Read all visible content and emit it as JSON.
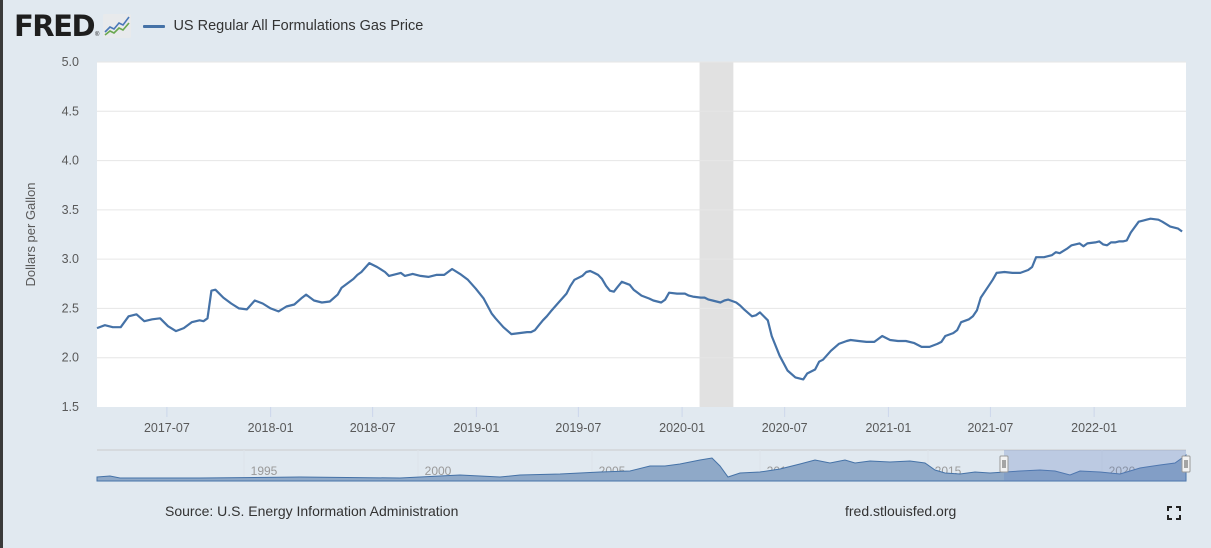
{
  "header": {
    "logo_text": "FRED",
    "logo_reg": "®",
    "logo_icon": "line-chart-icon",
    "legend_label": "US Regular All Formulations Gas Price",
    "series_color": "#4572a7"
  },
  "footer": {
    "source": "Source: U.S. Energy Information Administration",
    "url": "fred.stlouisfed.org",
    "fullscreen_icon": "fullscreen-icon"
  },
  "navigator": {
    "year_labels": [
      "1995",
      "2000",
      "2005",
      "2010",
      "2015",
      "2020"
    ],
    "selected_range": [
      "2017-02",
      "2022-06"
    ]
  },
  "chart_data": {
    "type": "line",
    "title": "US Regular All Formulations Gas Price",
    "xlabel": "",
    "ylabel": "Dollars per Gallon",
    "ylim": [
      1.5,
      5.0
    ],
    "xlim": [
      "2017-02-27",
      "2022-06-13"
    ],
    "yticks": [
      "1.5",
      "2.0",
      "2.5",
      "3.0",
      "3.5",
      "4.0",
      "4.5",
      "5.0"
    ],
    "xticks": [
      {
        "date": "2017-07-01",
        "label": "2017-07"
      },
      {
        "date": "2018-01-01",
        "label": "2018-01"
      },
      {
        "date": "2018-07-01",
        "label": "2018-07"
      },
      {
        "date": "2019-01-01",
        "label": "2019-01"
      },
      {
        "date": "2019-07-01",
        "label": "2019-07"
      },
      {
        "date": "2020-01-01",
        "label": "2020-01"
      },
      {
        "date": "2020-07-01",
        "label": "2020-07"
      },
      {
        "date": "2021-01-01",
        "label": "2021-01"
      },
      {
        "date": "2021-07-01",
        "label": "2021-07"
      },
      {
        "date": "2022-01-01",
        "label": "2022-01"
      }
    ],
    "grid": true,
    "legend": "top-left",
    "recession_shading": [
      [
        "2020-02-01",
        "2020-04-01"
      ]
    ],
    "series": [
      {
        "name": "US Regular All Formulations Gas Price",
        "color": "#4572a7",
        "points": [
          [
            "2017-02-27",
            2.3
          ],
          [
            "2017-03-13",
            2.33
          ],
          [
            "2017-03-27",
            2.31
          ],
          [
            "2017-04-10",
            2.31
          ],
          [
            "2017-04-24",
            2.42
          ],
          [
            "2017-05-08",
            2.44
          ],
          [
            "2017-05-22",
            2.37
          ],
          [
            "2017-06-05",
            2.39
          ],
          [
            "2017-06-19",
            2.4
          ],
          [
            "2017-07-03",
            2.32
          ],
          [
            "2017-07-17",
            2.27
          ],
          [
            "2017-07-31",
            2.3
          ],
          [
            "2017-08-14",
            2.36
          ],
          [
            "2017-08-28",
            2.38
          ],
          [
            "2017-09-04",
            2.37
          ],
          [
            "2017-09-11",
            2.4
          ],
          [
            "2017-09-18",
            2.68
          ],
          [
            "2017-09-25",
            2.69
          ],
          [
            "2017-10-09",
            2.61
          ],
          [
            "2017-10-23",
            2.55
          ],
          [
            "2017-11-06",
            2.5
          ],
          [
            "2017-11-20",
            2.49
          ],
          [
            "2017-12-04",
            2.58
          ],
          [
            "2017-12-18",
            2.55
          ],
          [
            "2018-01-01",
            2.5
          ],
          [
            "2018-01-15",
            2.47
          ],
          [
            "2018-01-29",
            2.52
          ],
          [
            "2018-02-12",
            2.54
          ],
          [
            "2018-02-26",
            2.61
          ],
          [
            "2018-03-05",
            2.64
          ],
          [
            "2018-03-19",
            2.58
          ],
          [
            "2018-04-02",
            2.56
          ],
          [
            "2018-04-16",
            2.57
          ],
          [
            "2018-04-30",
            2.64
          ],
          [
            "2018-05-07",
            2.71
          ],
          [
            "2018-05-28",
            2.8
          ],
          [
            "2018-06-04",
            2.84
          ],
          [
            "2018-06-11",
            2.87
          ],
          [
            "2018-06-25",
            2.96
          ],
          [
            "2018-07-09",
            2.92
          ],
          [
            "2018-07-23",
            2.87
          ],
          [
            "2018-07-30",
            2.83
          ],
          [
            "2018-08-13",
            2.85
          ],
          [
            "2018-08-20",
            2.86
          ],
          [
            "2018-08-27",
            2.83
          ],
          [
            "2018-09-10",
            2.85
          ],
          [
            "2018-09-24",
            2.83
          ],
          [
            "2018-10-08",
            2.82
          ],
          [
            "2018-10-22",
            2.84
          ],
          [
            "2018-11-05",
            2.84
          ],
          [
            "2018-11-19",
            2.9
          ],
          [
            "2018-12-03",
            2.85
          ],
          [
            "2018-12-17",
            2.79
          ],
          [
            "2018-12-31",
            2.7
          ],
          [
            "2019-01-14",
            2.6
          ],
          [
            "2019-01-28",
            2.45
          ],
          [
            "2019-02-04",
            2.4
          ],
          [
            "2019-02-18",
            2.31
          ],
          [
            "2019-03-04",
            2.24
          ],
          [
            "2019-03-18",
            2.25
          ],
          [
            "2019-04-01",
            2.26
          ],
          [
            "2019-04-08",
            2.26
          ],
          [
            "2019-04-15",
            2.28
          ],
          [
            "2019-04-22",
            2.33
          ],
          [
            "2019-04-29",
            2.38
          ],
          [
            "2019-05-06",
            2.42
          ],
          [
            "2019-05-13",
            2.47
          ],
          [
            "2019-05-27",
            2.56
          ],
          [
            "2019-06-10",
            2.65
          ],
          [
            "2019-06-17",
            2.73
          ],
          [
            "2019-06-24",
            2.79
          ],
          [
            "2019-07-08",
            2.83
          ],
          [
            "2019-07-15",
            2.87
          ],
          [
            "2019-07-22",
            2.88
          ],
          [
            "2019-07-29",
            2.86
          ],
          [
            "2019-08-05",
            2.84
          ],
          [
            "2019-08-12",
            2.8
          ],
          [
            "2019-08-19",
            2.73
          ],
          [
            "2019-08-26",
            2.68
          ],
          [
            "2019-09-02",
            2.67
          ],
          [
            "2019-09-09",
            2.72
          ],
          [
            "2019-09-16",
            2.77
          ],
          [
            "2019-09-30",
            2.74
          ],
          [
            "2019-10-07",
            2.69
          ],
          [
            "2019-10-21",
            2.63
          ],
          [
            "2019-11-04",
            2.6
          ],
          [
            "2019-11-11",
            2.58
          ],
          [
            "2019-11-25",
            2.56
          ],
          [
            "2019-12-02",
            2.59
          ],
          [
            "2019-12-09",
            2.66
          ],
          [
            "2019-12-23",
            2.65
          ],
          [
            "2020-01-06",
            2.65
          ],
          [
            "2020-01-13",
            2.63
          ],
          [
            "2020-01-20",
            2.62
          ],
          [
            "2020-02-03",
            2.61
          ],
          [
            "2020-02-10",
            2.61
          ],
          [
            "2020-02-17",
            2.59
          ],
          [
            "2020-02-24",
            2.58
          ],
          [
            "2020-03-09",
            2.56
          ],
          [
            "2020-03-16",
            2.58
          ],
          [
            "2020-03-23",
            2.59
          ],
          [
            "2020-04-06",
            2.56
          ],
          [
            "2020-04-13",
            2.53
          ],
          [
            "2020-04-20",
            2.49
          ],
          [
            "2020-05-04",
            2.42
          ],
          [
            "2020-05-11",
            2.43
          ],
          [
            "2020-05-18",
            2.46
          ],
          [
            "2020-06-01",
            2.38
          ],
          [
            "2020-06-08",
            2.22
          ],
          [
            "2020-06-22",
            2.02
          ],
          [
            "2020-07-06",
            1.87
          ],
          [
            "2020-07-20",
            1.8
          ],
          [
            "2020-08-03",
            1.78
          ],
          [
            "2020-08-10",
            1.84
          ],
          [
            "2020-08-24",
            1.88
          ],
          [
            "2020-08-31",
            1.96
          ],
          [
            "2020-09-07",
            1.98
          ],
          [
            "2020-09-21",
            2.07
          ],
          [
            "2020-10-05",
            2.14
          ],
          [
            "2020-10-19",
            2.17
          ],
          [
            "2020-10-26",
            2.18
          ],
          [
            "2020-11-09",
            2.17
          ],
          [
            "2020-11-23",
            2.16
          ],
          [
            "2020-12-07",
            2.16
          ],
          [
            "2020-12-14",
            2.19
          ],
          [
            "2020-12-21",
            2.22
          ],
          [
            "2021-01-04",
            2.18
          ],
          [
            "2021-01-18",
            2.17
          ],
          [
            "2021-02-01",
            2.17
          ],
          [
            "2021-02-15",
            2.15
          ],
          [
            "2021-02-22",
            2.13
          ],
          [
            "2021-03-01",
            2.11
          ],
          [
            "2021-03-15",
            2.11
          ],
          [
            "2021-03-29",
            2.14
          ],
          [
            "2021-04-05",
            2.16
          ],
          [
            "2021-04-12",
            2.22
          ],
          [
            "2021-04-26",
            2.25
          ],
          [
            "2021-05-03",
            2.28
          ],
          [
            "2021-05-10",
            2.36
          ],
          [
            "2021-05-24",
            2.39
          ],
          [
            "2021-05-31",
            2.42
          ],
          [
            "2021-06-07",
            2.48
          ],
          [
            "2021-06-14",
            2.61
          ],
          [
            "2021-06-28",
            2.73
          ],
          [
            "2021-07-05",
            2.79
          ],
          [
            "2021-07-12",
            2.86
          ],
          [
            "2021-07-26",
            2.87
          ],
          [
            "2021-08-09",
            2.86
          ],
          [
            "2021-08-23",
            2.86
          ],
          [
            "2021-09-06",
            2.89
          ],
          [
            "2021-09-13",
            2.92
          ],
          [
            "2021-09-20",
            3.02
          ],
          [
            "2021-10-04",
            3.02
          ],
          [
            "2021-10-18",
            3.04
          ],
          [
            "2021-10-25",
            3.07
          ],
          [
            "2021-11-01",
            3.06
          ],
          [
            "2021-11-15",
            3.11
          ],
          [
            "2021-11-22",
            3.14
          ],
          [
            "2021-12-06",
            3.16
          ],
          [
            "2021-12-13",
            3.13
          ],
          [
            "2021-12-20",
            3.16
          ],
          [
            "2022-01-03",
            3.17
          ],
          [
            "2022-01-10",
            3.18
          ],
          [
            "2022-01-17",
            3.15
          ],
          [
            "2022-01-24",
            3.14
          ],
          [
            "2022-01-31",
            3.17
          ],
          [
            "2022-02-07",
            3.17
          ],
          [
            "2022-02-14",
            3.18
          ],
          [
            "2022-02-21",
            3.18
          ],
          [
            "2022-02-28",
            3.19
          ],
          [
            "2022-03-07",
            3.27
          ],
          [
            "2022-03-21",
            3.38
          ],
          [
            "2022-04-04",
            3.4
          ],
          [
            "2022-04-11",
            3.41
          ],
          [
            "2022-04-25",
            3.4
          ],
          [
            "2022-05-02",
            3.38
          ],
          [
            "2022-05-16",
            3.33
          ],
          [
            "2022-05-30",
            3.31
          ],
          [
            "2022-06-06",
            3.28
          ]
        ]
      }
    ]
  }
}
